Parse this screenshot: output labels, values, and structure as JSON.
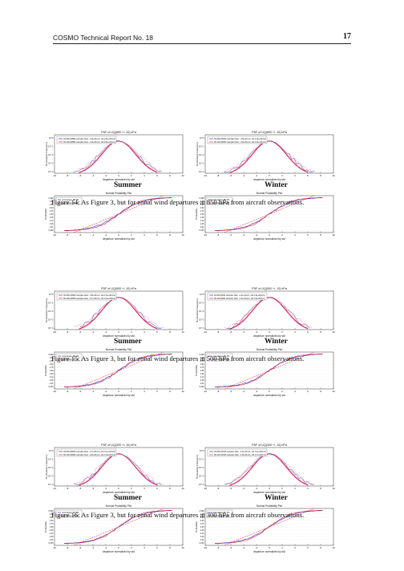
{
  "header": {
    "report": "COSMO Technical Report No. 18",
    "page": "17"
  },
  "figures": [
    {
      "caption": "Figure 14: As Figure 3, but for zonal wind departures at 850 hPa from aircraft observations.",
      "panels": [
        {
          "season": "Summer",
          "pdf": {
            "title": "PDF of UQ(850 +/- 10) hPa",
            "ylabel": "Normalized Frequency",
            "xlabel": "departure normalized by std",
            "legend": [
              "03-06h(19582 samples bias: -3.4e-01m/s, std 2.8e+00m/s)",
              "09-12h(19582 samples bias: -4.4e-01m/s, std 2.8e+00m/s)"
            ]
          },
          "prob": {
            "title": "Normal Probability Plot",
            "ylabel": "Probability",
            "xlabel": "departure normalized by std",
            "legend": [
              "normrange: 88.3%",
              "normrange: 86.1%"
            ]
          }
        },
        {
          "season": "Winter",
          "pdf": {
            "title": "PDF of UQ(850 +/- 10) hPa",
            "ylabel": "Normalized Frequency",
            "xlabel": "departure normalized by std",
            "legend": [
              "03-06h(15002 samples bias: -4.5e-01m/s, std 2.9e+00m/s)",
              "09-12h(15002 samples bias: -4.2e-01m/s, std 3.0e+00m/s)"
            ]
          },
          "prob": {
            "title": "Normal Probability Plot",
            "ylabel": "Probability",
            "xlabel": "departure normalized by std",
            "legend": [
              "normrange: 89.4%",
              "normrange: 85.7%"
            ]
          }
        }
      ]
    },
    {
      "caption": "Figure 15: As Figure 3, but for zonal wind departures at 500 hPa from aircraft observations.",
      "panels": [
        {
          "season": "Summer",
          "pdf": {
            "title": "PDF of UQ(500 +/- 10) hPa",
            "ylabel": "Normalized Frequency",
            "xlabel": "departure normalized by std",
            "legend": [
              "03-06h(10059 samples bias: -3.8e-01m/s, std 2.5e+00m/s)",
              "09-12h(10059 samples bias: -5.7e-01m/s, std 2.6e+00m/s)"
            ]
          },
          "prob": {
            "title": "Normal Probability Plot",
            "ylabel": "Probability",
            "xlabel": "departure normalized by std",
            "legend": [
              "normrange: 85.1%",
              "normrange: 87.3%"
            ]
          }
        },
        {
          "season": "Winter",
          "pdf": {
            "title": "PDF of UQ(500 +/- 10) hPa",
            "ylabel": "Normalized Frequency",
            "xlabel": "departure normalized by std",
            "legend": [
              "03-06h(2932 samples bias: -2.4e-01m/s, std 2.9e+00m/s)",
              "09-12h(2932 samples bias: -7.3e-01m/s, std 3.0e+00m/s)"
            ]
          },
          "prob": {
            "title": "Normal Probability Plot",
            "ylabel": "Probability",
            "xlabel": "departure normalized by std",
            "legend": [
              "normrange: 84.4%",
              "normrange: 86.5%"
            ]
          }
        }
      ]
    },
    {
      "caption": "Figure 16: As Figure 3, but for zonal wind departures at 300 hPa from aircraft observations.",
      "panels": [
        {
          "season": "Summer",
          "pdf": {
            "title": "PDF of UQ(300 +/- 10) hPa",
            "ylabel": "Normalized Frequency",
            "xlabel": "departure normalized by std",
            "legend": [
              "03-06h(16660 samples bias: -2.7e-01m/s, std 3.1e+00m/s)",
              "09-12h(16660 samples bias: -4.5e-01m/s, std 3.4e+00m/s)"
            ]
          },
          "prob": {
            "title": "Normal Probability Plot",
            "ylabel": "Probability",
            "xlabel": "departure normalized by std",
            "legend": [
              "normrange: 82.8%",
              "normrange: 79.8%"
            ]
          }
        },
        {
          "season": "Winter",
          "pdf": {
            "title": "PDF of UQ(300 +/- 10) hPa",
            "ylabel": "Normalized Frequency",
            "xlabel": "departure normalized by std",
            "legend": [
              "03-06h(11525 samples bias: -2.4e-01m/s, std 3.2e+00m/s)",
              "09-12h(11525 samples bias: -1.5e-01m/s, std 3.7e+00m/s)"
            ]
          },
          "prob": {
            "title": "Normal Probability Plot",
            "ylabel": "Probability",
            "xlabel": "departure normalized by std",
            "legend": [
              "normrange: 82.1%",
              "normrange: 84.3%"
            ]
          }
        }
      ]
    }
  ],
  "chart_data": [
    {
      "type": "line",
      "title": "PDF of UQ(850 +/- 10) hPa",
      "xlabel": "departure normalized by std",
      "ylabel": "Normalized Frequency",
      "xlim": [
        -10,
        10
      ],
      "ylim": [
        0.0001,
        1
      ],
      "yscale": "log",
      "legend": "top-left",
      "series": [
        {
          "name": "03-06h",
          "color": "#1a1ad8"
        },
        {
          "name": "09-12h",
          "color": "#e11"
        }
      ]
    },
    {
      "type": "line",
      "title": "Normal Probability Plot",
      "xlabel": "departure normalized by std",
      "ylabel": "Probability",
      "xlim": [
        -10,
        10
      ],
      "yticks": [
        "0.999",
        "0.99",
        "0.95",
        "0.90",
        "0.75",
        "0.50",
        "0.25",
        "0.10",
        "0.05",
        "0.01",
        "0.003"
      ],
      "legend": "top-left",
      "series": [
        {
          "name": "normrange",
          "color": "#1a1ad8"
        },
        {
          "name": "normrange",
          "color": "#e11"
        }
      ]
    }
  ],
  "axes": {
    "x_ticks": [
      "-10",
      "-8",
      "-6",
      "-4",
      "-2",
      "0",
      "2",
      "4",
      "6",
      "8",
      "10"
    ],
    "pdf_y_ticks": [
      "10^0",
      "10^-1",
      "10^-2",
      "10^-3",
      "10^-4"
    ],
    "prob_y_ticks": [
      "0.999",
      "0.99",
      "0.95",
      "0.90",
      "0.75",
      "0.50",
      "0.25",
      "0.10",
      "0.05",
      "0.01",
      "0.003"
    ]
  },
  "colors": {
    "early": "#1a1ad8",
    "late": "#e11",
    "fit": "#c8107a"
  }
}
